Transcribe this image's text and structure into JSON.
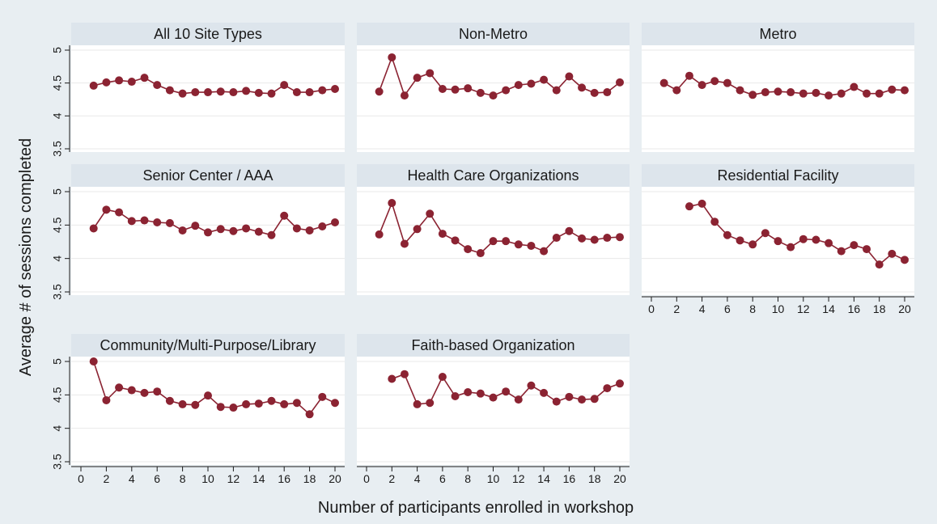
{
  "chart_data": {
    "type": "line",
    "layout": "small-multiples",
    "ylabel": "Average # of sessions completed",
    "xlabel": "Number of participants enrolled in workshop",
    "ylim": [
      3.5,
      5
    ],
    "yticks": [
      "3.5",
      "4",
      "4.5",
      "5"
    ],
    "xlim": [
      0,
      20
    ],
    "xticks": [
      "0",
      "2",
      "4",
      "6",
      "8",
      "10",
      "12",
      "14",
      "16",
      "18",
      "20"
    ],
    "x": [
      1,
      2,
      3,
      4,
      5,
      6,
      7,
      8,
      9,
      10,
      11,
      12,
      13,
      14,
      15,
      16,
      17,
      18,
      19,
      20
    ],
    "series_color": "#8b2332",
    "panel_background": "#ffffff",
    "strip_color": "#dde5ec",
    "outer_background": "#e8eef2",
    "panels": [
      {
        "title": "All 10 Site Types",
        "values": [
          4.46,
          4.51,
          4.54,
          4.52,
          4.58,
          4.47,
          4.39,
          4.34,
          4.36,
          4.36,
          4.37,
          4.36,
          4.38,
          4.35,
          4.34,
          4.47,
          4.36,
          4.36,
          4.39,
          4.41
        ]
      },
      {
        "title": "Non-Metro",
        "values": [
          4.37,
          4.89,
          4.31,
          4.58,
          4.65,
          4.41,
          4.4,
          4.42,
          4.35,
          4.31,
          4.39,
          4.47,
          4.49,
          4.55,
          4.39,
          4.6,
          4.43,
          4.35,
          4.36,
          4.51
        ]
      },
      {
        "title": "Metro",
        "values": [
          4.5,
          4.39,
          4.61,
          4.47,
          4.53,
          4.5,
          4.39,
          4.32,
          4.36,
          4.37,
          4.36,
          4.34,
          4.35,
          4.31,
          4.34,
          4.44,
          4.34,
          4.34,
          4.4,
          4.39
        ]
      },
      {
        "title": "Senior Center / AAA",
        "values": [
          4.45,
          4.73,
          4.69,
          4.56,
          4.57,
          4.54,
          4.53,
          4.42,
          4.49,
          4.39,
          4.44,
          4.41,
          4.45,
          4.4,
          4.35,
          4.64,
          4.45,
          4.42,
          4.48,
          4.54
        ]
      },
      {
        "title": "Health Care Organizations",
        "values": [
          4.36,
          4.83,
          4.22,
          4.44,
          4.67,
          4.37,
          4.27,
          4.14,
          4.08,
          4.26,
          4.26,
          4.21,
          4.19,
          4.11,
          4.31,
          4.41,
          4.3,
          4.28,
          4.31,
          4.32
        ]
      },
      {
        "title": "Residential Facility",
        "values": [
          null,
          null,
          4.78,
          4.82,
          4.55,
          4.35,
          4.27,
          4.21,
          4.38,
          4.26,
          4.17,
          4.29,
          4.28,
          4.23,
          4.11,
          4.2,
          4.14,
          3.91,
          4.07,
          3.98
        ]
      },
      {
        "title": "Community/Multi-Purpose/Library",
        "values": [
          5.0,
          4.42,
          4.61,
          4.57,
          4.53,
          4.55,
          4.41,
          4.36,
          4.35,
          4.49,
          4.32,
          4.31,
          4.36,
          4.37,
          4.41,
          4.36,
          4.38,
          4.21,
          4.47,
          4.38
        ]
      },
      {
        "title": "Faith-based Organization",
        "values": [
          null,
          4.74,
          4.81,
          4.36,
          4.38,
          4.77,
          4.48,
          4.54,
          4.52,
          4.46,
          4.55,
          4.43,
          4.64,
          4.53,
          4.4,
          4.47,
          4.43,
          4.44,
          4.6,
          4.67
        ]
      }
    ]
  }
}
